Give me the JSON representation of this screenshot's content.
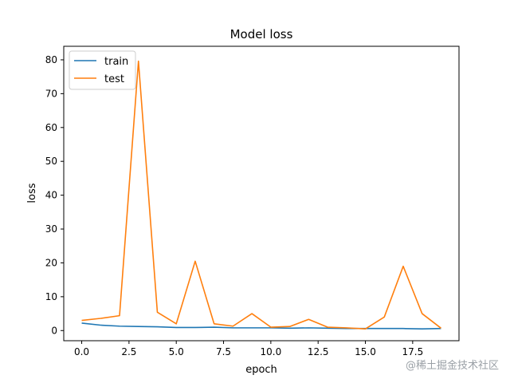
{
  "chart_data": {
    "type": "line",
    "title": "Model loss",
    "xlabel": "epoch",
    "ylabel": "loss",
    "x": [
      0,
      1,
      2,
      3,
      4,
      5,
      6,
      7,
      8,
      9,
      10,
      11,
      12,
      13,
      14,
      15,
      16,
      17,
      18,
      19
    ],
    "xlim": [
      -0.95,
      19.95
    ],
    "ylim": [
      -3.0,
      84.0
    ],
    "xticks": [
      0,
      2.5,
      5,
      7.5,
      10,
      12.5,
      15,
      17.5
    ],
    "xtick_labels": [
      "0.0",
      "2.5",
      "5.0",
      "7.5",
      "10.0",
      "12.5",
      "15.0",
      "17.5"
    ],
    "yticks": [
      0,
      10,
      20,
      30,
      40,
      50,
      60,
      70,
      80
    ],
    "ytick_labels": [
      "0",
      "10",
      "20",
      "30",
      "40",
      "50",
      "60",
      "70",
      "80"
    ],
    "legend_position": "upper-left",
    "grid": false,
    "series": [
      {
        "name": "train",
        "color": "#1f77b4",
        "values": [
          2.2,
          1.6,
          1.3,
          1.2,
          1.1,
          0.9,
          0.9,
          1.0,
          0.8,
          0.8,
          0.8,
          0.7,
          0.8,
          0.7,
          0.6,
          0.6,
          0.6,
          0.6,
          0.5,
          0.6
        ]
      },
      {
        "name": "test",
        "color": "#ff7f0e",
        "values": [
          3.0,
          3.6,
          4.4,
          79.6,
          5.4,
          2.0,
          20.5,
          2.0,
          1.3,
          5.0,
          1.0,
          1.2,
          3.3,
          1.0,
          0.8,
          0.5,
          4.0,
          19.0,
          5.0,
          0.7
        ]
      }
    ]
  },
  "watermark": "@稀土掘金技术社区"
}
